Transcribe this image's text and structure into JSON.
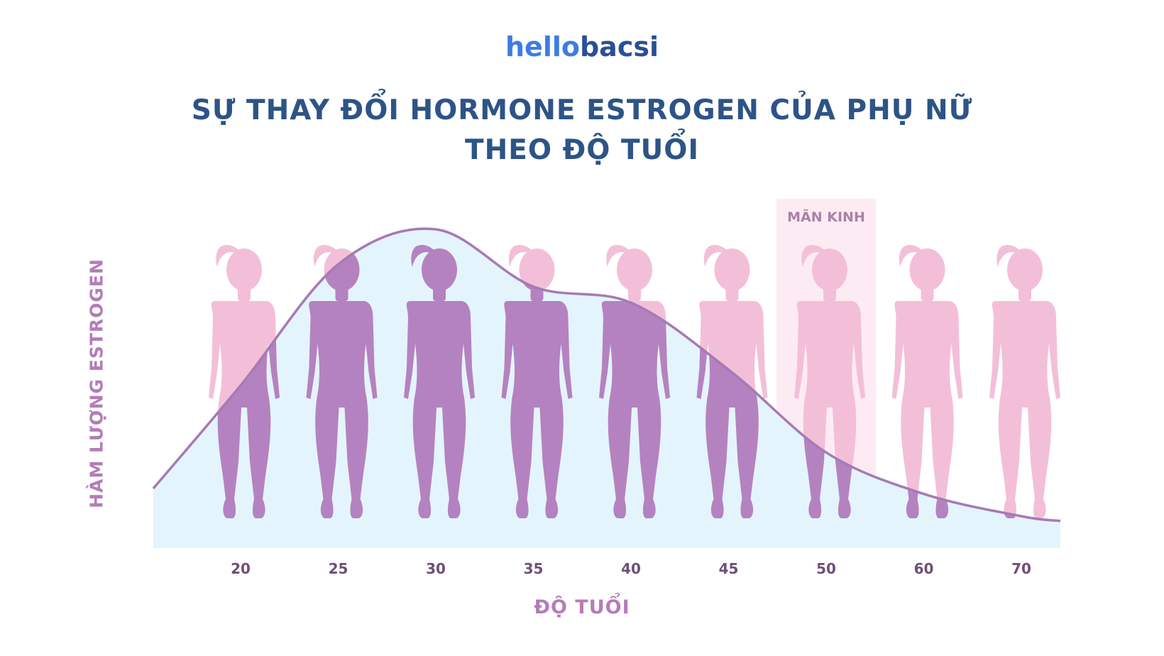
{
  "brand": {
    "hello": "hello",
    "bacsi": "bacsi"
  },
  "title_lines": [
    "SỰ THAY ĐỔI HORMONE ESTROGEN CỦA PHỤ NỮ",
    "THEO ĐỘ TUỔI"
  ],
  "chart_data": {
    "type": "area",
    "title": "SỰ THAY ĐỔI HORMONE ESTROGEN CỦA PHỤ NỮ THEO ĐỘ TUỔI",
    "xlabel": "ĐỘ TUỔI",
    "ylabel": "HÀM LƯỢNG ESTROGEN",
    "categories": [
      "20",
      "25",
      "30",
      "35",
      "40",
      "45",
      "50",
      "60",
      "70"
    ],
    "values": [
      0.51,
      0.89,
      1.0,
      0.82,
      0.77,
      0.56,
      0.3,
      0.17,
      0.1
    ],
    "ylim": [
      0,
      1.0
    ],
    "highlight": {
      "label": "MÃN KINH",
      "category": "50"
    },
    "grid": false,
    "colors": {
      "fill": "#e4f4fc",
      "line": "#a67ab5",
      "figure_above": "#f3bfd8",
      "figure_below": "#b482c0",
      "band": "#fdebf3"
    }
  }
}
